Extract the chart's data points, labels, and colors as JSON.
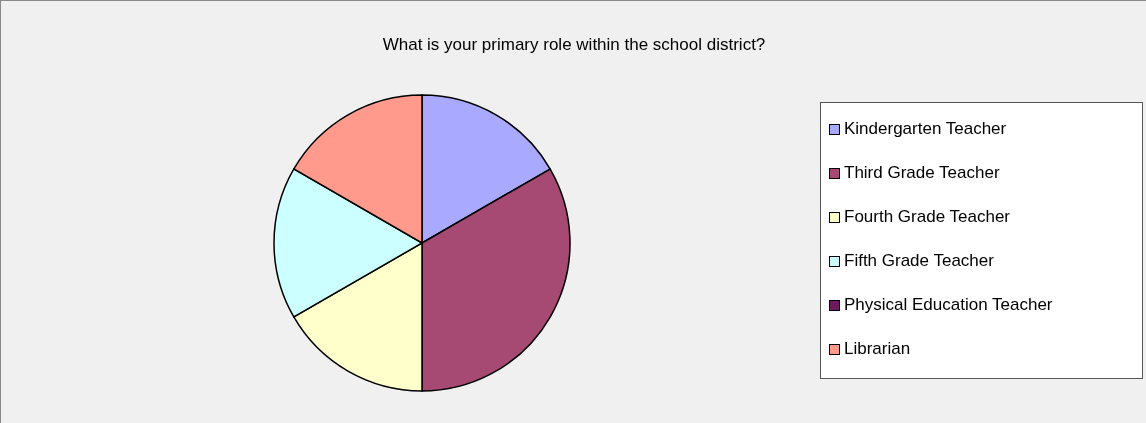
{
  "chart_data": {
    "type": "pie",
    "title": "What is your primary role within the school district?",
    "categories": [
      "Kindergarten Teacher",
      "Third Grade Teacher",
      "Fourth Grade Teacher",
      "Fifth Grade Teacher",
      "Physical Education Teacher",
      "Librarian"
    ],
    "values": [
      16.67,
      33.33,
      16.67,
      16.67,
      0,
      16.66
    ],
    "colors": [
      "#a9a9ff",
      "#a64a74",
      "#ffffcc",
      "#ccffff",
      "#6e1a5e",
      "#ff9a8c"
    ],
    "legend": "right"
  }
}
